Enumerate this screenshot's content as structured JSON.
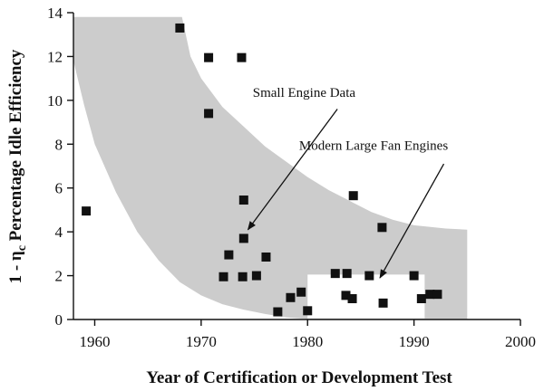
{
  "chart_data": {
    "type": "scatter",
    "xlabel": "Year of Certification or Development Test",
    "ylabel_prefix": "1 - η",
    "ylabel_sub": "c",
    "ylabel_suffix": " Percentage Idle Efficiency",
    "xlim": [
      1958,
      2000
    ],
    "ylim": [
      0,
      14
    ],
    "xticks": [
      1960,
      1970,
      1980,
      1990,
      2000
    ],
    "yticks": [
      0,
      2,
      4,
      6,
      8,
      10,
      12,
      14
    ],
    "grid": false,
    "colors": {
      "band": "#cccccc",
      "marker": "#111111",
      "axis": "#111111",
      "large_fan_box": "#ffffff"
    },
    "gray_band": {
      "upper": [
        [
          1958,
          13.8
        ],
        [
          1968.2,
          13.8
        ],
        [
          1969,
          12
        ],
        [
          1970,
          11
        ],
        [
          1972,
          9.7
        ],
        [
          1974,
          8.8
        ],
        [
          1976,
          7.9
        ],
        [
          1978,
          7.2
        ],
        [
          1980,
          6.5
        ],
        [
          1982,
          5.9
        ],
        [
          1984,
          5.4
        ],
        [
          1986,
          4.9
        ],
        [
          1988,
          4.55
        ],
        [
          1990,
          4.3
        ],
        [
          1993,
          4.15
        ],
        [
          1995,
          4.1
        ]
      ],
      "lower": [
        [
          1958,
          11.8
        ],
        [
          1959,
          9.8
        ],
        [
          1960,
          8
        ],
        [
          1962,
          5.8
        ],
        [
          1964,
          4
        ],
        [
          1966,
          2.7
        ],
        [
          1968,
          1.7
        ],
        [
          1970,
          1.1
        ],
        [
          1972,
          0.7
        ],
        [
          1974,
          0.45
        ],
        [
          1976,
          0.25
        ],
        [
          1978,
          0.1
        ],
        [
          1980,
          0.02
        ],
        [
          1995,
          0.02
        ]
      ]
    },
    "large_fan_box": {
      "x": [
        1980,
        1991
      ],
      "y": [
        0.05,
        2.05
      ]
    },
    "points": [
      {
        "x": 1959.2,
        "y": 4.95
      },
      {
        "x": 1968.0,
        "y": 13.3
      },
      {
        "x": 1970.7,
        "y": 11.95
      },
      {
        "x": 1973.8,
        "y": 11.95
      },
      {
        "x": 1970.7,
        "y": 9.4
      },
      {
        "x": 1974.0,
        "y": 5.45
      },
      {
        "x": 1984.3,
        "y": 5.65
      },
      {
        "x": 1974.0,
        "y": 3.7
      },
      {
        "x": 1972.6,
        "y": 2.95
      },
      {
        "x": 1976.1,
        "y": 2.85
      },
      {
        "x": 1987.0,
        "y": 4.2
      },
      {
        "x": 1972.1,
        "y": 1.95
      },
      {
        "x": 1973.9,
        "y": 1.95
      },
      {
        "x": 1975.2,
        "y": 2.0
      },
      {
        "x": 1982.6,
        "y": 2.1
      },
      {
        "x": 1983.7,
        "y": 2.1
      },
      {
        "x": 1985.8,
        "y": 2.0
      },
      {
        "x": 1990.0,
        "y": 2.0
      },
      {
        "x": 1978.4,
        "y": 1.0
      },
      {
        "x": 1979.4,
        "y": 1.25
      },
      {
        "x": 1983.6,
        "y": 1.1
      },
      {
        "x": 1984.2,
        "y": 0.95
      },
      {
        "x": 1987.1,
        "y": 0.75
      },
      {
        "x": 1990.7,
        "y": 0.95
      },
      {
        "x": 1991.5,
        "y": 1.15
      },
      {
        "x": 1992.2,
        "y": 1.15
      },
      {
        "x": 1977.2,
        "y": 0.35
      },
      {
        "x": 1980.0,
        "y": 0.4
      }
    ],
    "annotations": [
      {
        "text": "Small Engine Data",
        "text_x": 1984.5,
        "text_y": 10.15,
        "arrow_from": [
          1982.8,
          9.6
        ],
        "arrow_to": [
          1974.4,
          4.1
        ]
      },
      {
        "text": "Modern Large Fan Engines",
        "text_x": 1993.2,
        "text_y": 7.75,
        "arrow_from": [
          1992.8,
          7.1
        ],
        "arrow_to": [
          1986.8,
          1.9
        ]
      }
    ]
  }
}
